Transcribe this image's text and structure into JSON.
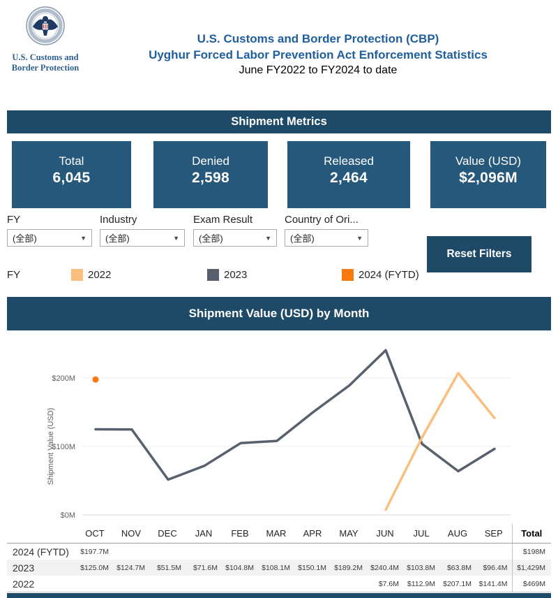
{
  "header": {
    "logo_caption_line1": "U.S. Customs and",
    "logo_caption_line2": "Border Protection",
    "title_line1": "U.S. Customs and Border Protection (CBP)",
    "title_line2": "Uyghur Forced Labor Prevention Act Enforcement Statistics",
    "subtitle": "June FY2022 to FY2024 to date"
  },
  "metrics": {
    "banner_title": "Shipment Metrics",
    "cards": [
      {
        "label": "Total",
        "value": "6,045"
      },
      {
        "label": "Denied",
        "value": "2,598"
      },
      {
        "label": "Released",
        "value": "2,464"
      },
      {
        "label": "Value (USD)",
        "value": "$2,096M"
      }
    ]
  },
  "filters": {
    "dropdowns": [
      {
        "label": "FY",
        "value": "(全部)"
      },
      {
        "label": "Industry",
        "value": "(全部)"
      },
      {
        "label": "Exam Result",
        "value": "(全部)"
      },
      {
        "label": "Country of Ori...",
        "value": "(全部)"
      }
    ],
    "reset_button_label": "Reset Filters"
  },
  "fy_legend": {
    "label": "FY",
    "items": [
      {
        "label": "2022",
        "color": "#FBBE7D"
      },
      {
        "label": "2023",
        "color": "#57606C"
      },
      {
        "label": "2024 (FYTD)",
        "color": "#F8790B"
      }
    ]
  },
  "chart_section": {
    "banner_title": "Shipment Value (USD) by Month"
  },
  "chart_data": {
    "type": "line",
    "title": "Shipment Value (USD) by Month",
    "xlabel": "",
    "ylabel": "Shipment Value (USD)",
    "categories": [
      "OCT",
      "NOV",
      "DEC",
      "JAN",
      "FEB",
      "MAR",
      "APR",
      "MAY",
      "JUN",
      "JUL",
      "AUG",
      "SEP"
    ],
    "ylim": [
      0,
      260
    ],
    "grid": true,
    "legend_position": "top-separate",
    "yticks": [
      {
        "value": 0,
        "label": "$0M"
      },
      {
        "value": 100,
        "label": "$100M"
      },
      {
        "value": 200,
        "label": "$200M"
      }
    ],
    "series": [
      {
        "name": "2023",
        "color": "#57606C",
        "values": [
          125.0,
          124.7,
          51.5,
          71.6,
          104.8,
          108.1,
          150.1,
          189.2,
          240.4,
          103.8,
          63.8,
          96.4
        ]
      },
      {
        "name": "2022",
        "color": "#FBBE7D",
        "values": [
          null,
          null,
          null,
          null,
          null,
          null,
          null,
          null,
          7.6,
          112.9,
          207.1,
          141.4
        ]
      },
      {
        "name": "2024 (FYTD)",
        "color": "#F8790B",
        "values": [
          197.7,
          null,
          null,
          null,
          null,
          null,
          null,
          null,
          null,
          null,
          null,
          null
        ]
      }
    ]
  },
  "table": {
    "columns": [
      "",
      "OCT",
      "NOV",
      "DEC",
      "JAN",
      "FEB",
      "MAR",
      "APR",
      "MAY",
      "JUN",
      "JUL",
      "AUG",
      "SEP",
      "Total"
    ],
    "rows": [
      {
        "year": "2024 (FYTD)",
        "shaded": false,
        "values": [
          "$197.7M",
          "",
          "",
          "",
          "",
          "",
          "",
          "",
          "",
          "",
          "",
          ""
        ],
        "total": "$198M"
      },
      {
        "year": "2023",
        "shaded": true,
        "values": [
          "$125.0M",
          "$124.7M",
          "$51.5M",
          "$71.6M",
          "$104.8M",
          "$108.1M",
          "$150.1M",
          "$189.2M",
          "$240.4M",
          "$103.8M",
          "$63.8M",
          "$96.4M"
        ],
        "total": "$1,429M"
      },
      {
        "year": "2022",
        "shaded": false,
        "values": [
          "",
          "",
          "",
          "",
          "",
          "",
          "",
          "",
          "$7.6M",
          "$112.9M",
          "$207.1M",
          "$141.4M"
        ],
        "total": "$469M"
      }
    ]
  },
  "colors": {
    "banner_bg": "#1E4A68",
    "card_bg": "#26587B",
    "title_blue": "#1F5FA0",
    "logo_text_blue": "#2E5F8F",
    "series_2022": "#FBBE7D",
    "series_2023": "#57606C",
    "series_2024": "#F8790B",
    "table_shaded_row": "#F2F2F2"
  }
}
